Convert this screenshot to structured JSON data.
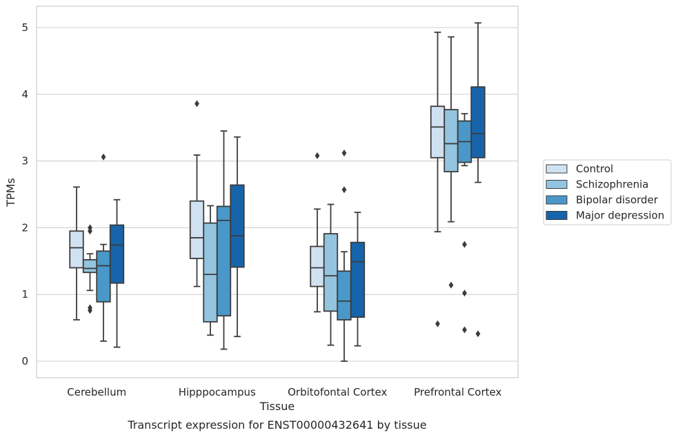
{
  "chart_data": {
    "type": "box",
    "caption": "Transcript expression for ENST00000432641 by tissue",
    "xlabel": "Tissue",
    "ylabel": "TPMs",
    "ylim": [
      -0.25,
      5.3
    ],
    "yticks": [
      0,
      1,
      2,
      3,
      4,
      5
    ],
    "ytick_labels": [
      "0",
      "1",
      "2",
      "3",
      "4",
      "5"
    ],
    "grid": true,
    "legend_position": "right",
    "categories": [
      "Cerebellum",
      "Hipppocampus",
      "Orbitofontal Cortex",
      "Prefrontal Cortex"
    ],
    "series": [
      {
        "name": "Control",
        "color": "#d0e1f2",
        "boxes": [
          {
            "whislo": 0.62,
            "q1": 1.4,
            "med": 1.7,
            "q3": 1.95,
            "whishi": 2.61,
            "fliers": []
          },
          {
            "whislo": 1.12,
            "q1": 1.54,
            "med": 1.85,
            "q3": 2.4,
            "whishi": 3.09,
            "fliers": [
              3.86
            ]
          },
          {
            "whislo": 0.74,
            "q1": 1.12,
            "med": 1.4,
            "q3": 1.72,
            "whishi": 2.28,
            "fliers": [
              3.08
            ]
          },
          {
            "whislo": 1.94,
            "q1": 3.05,
            "med": 3.51,
            "q3": 3.82,
            "whishi": 4.93,
            "fliers": [
              0.56
            ]
          }
        ]
      },
      {
        "name": "Schizophrenia",
        "color": "#94c4df",
        "boxes": [
          {
            "whislo": 1.06,
            "q1": 1.33,
            "med": 1.39,
            "q3": 1.52,
            "whishi": 1.61,
            "fliers": [
              2.0,
              1.95,
              0.8,
              0.76
            ]
          },
          {
            "whislo": 0.39,
            "q1": 0.59,
            "med": 1.3,
            "q3": 2.07,
            "whishi": 2.33,
            "fliers": []
          },
          {
            "whislo": 0.24,
            "q1": 0.75,
            "med": 1.28,
            "q3": 1.91,
            "whishi": 2.35,
            "fliers": []
          },
          {
            "whislo": 2.09,
            "q1": 2.84,
            "med": 3.26,
            "q3": 3.77,
            "whishi": 4.86,
            "fliers": [
              1.14
            ]
          }
        ]
      },
      {
        "name": "Bipolar disorder",
        "color": "#4a98c9",
        "boxes": [
          {
            "whislo": 0.3,
            "q1": 0.89,
            "med": 1.43,
            "q3": 1.65,
            "whishi": 1.75,
            "fliers": [
              3.06
            ]
          },
          {
            "whislo": 0.18,
            "q1": 0.68,
            "med": 2.11,
            "q3": 2.32,
            "whishi": 3.45,
            "fliers": []
          },
          {
            "whislo": 0.0,
            "q1": 0.62,
            "med": 0.9,
            "q3": 1.35,
            "whishi": 1.64,
            "fliers": [
              3.12,
              2.57
            ]
          },
          {
            "whislo": 2.93,
            "q1": 2.98,
            "med": 3.29,
            "q3": 3.6,
            "whishi": 3.71,
            "fliers": [
              1.75,
              1.02,
              0.47
            ]
          }
        ]
      },
      {
        "name": "Major depression",
        "color": "#1764ab",
        "boxes": [
          {
            "whislo": 0.21,
            "q1": 1.17,
            "med": 1.74,
            "q3": 2.04,
            "whishi": 2.42,
            "fliers": []
          },
          {
            "whislo": 0.37,
            "q1": 1.41,
            "med": 1.88,
            "q3": 2.64,
            "whishi": 3.36,
            "fliers": []
          },
          {
            "whislo": 0.23,
            "q1": 0.66,
            "med": 1.49,
            "q3": 1.78,
            "whishi": 2.23,
            "fliers": []
          },
          {
            "whislo": 2.68,
            "q1": 3.05,
            "med": 3.41,
            "q3": 4.11,
            "whishi": 5.07,
            "fliers": [
              0.41
            ]
          }
        ]
      }
    ]
  }
}
